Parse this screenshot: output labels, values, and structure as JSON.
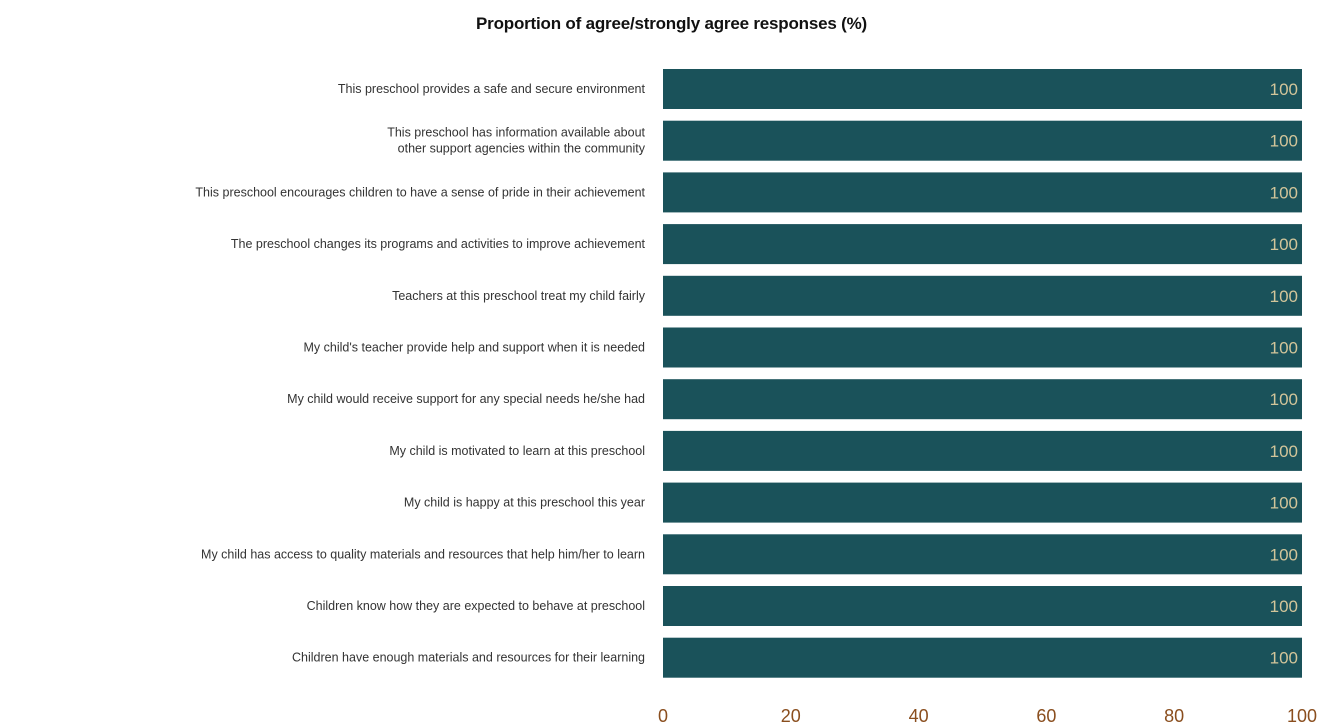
{
  "chart_data": {
    "type": "bar",
    "orientation": "horizontal",
    "title": "Proportion of agree/strongly agree responses (%)",
    "xlabel": "",
    "ylabel": "",
    "xlim": [
      0,
      100
    ],
    "x_ticks": [
      0,
      20,
      40,
      60,
      80,
      100
    ],
    "grid": false,
    "legend": "none",
    "bar_color": "#1a525a",
    "label_color": "#d2c59a",
    "tick_color": "#8a4e1e",
    "categories": [
      [
        "This preschool provides a safe and secure environment"
      ],
      [
        "This preschool has information available about",
        "other support agencies within the community"
      ],
      [
        "This preschool encourages children to have a sense of pride in their achievement"
      ],
      [
        "The preschool changes its programs and activities to improve achievement"
      ],
      [
        "Teachers at this preschool treat my child fairly"
      ],
      [
        "My child's teacher provide help and support when it is needed"
      ],
      [
        "My child would receive support for any special needs he/she had"
      ],
      [
        "My child is motivated to learn at this preschool"
      ],
      [
        "My child is happy at this preschool this year"
      ],
      [
        "My child has access to quality materials and resources that help him/her to learn"
      ],
      [
        "Children know how they are expected to behave at preschool"
      ],
      [
        "Children have enough materials and resources for their learning"
      ]
    ],
    "values": [
      100,
      100,
      100,
      100,
      100,
      100,
      100,
      100,
      100,
      100,
      100,
      100
    ]
  }
}
